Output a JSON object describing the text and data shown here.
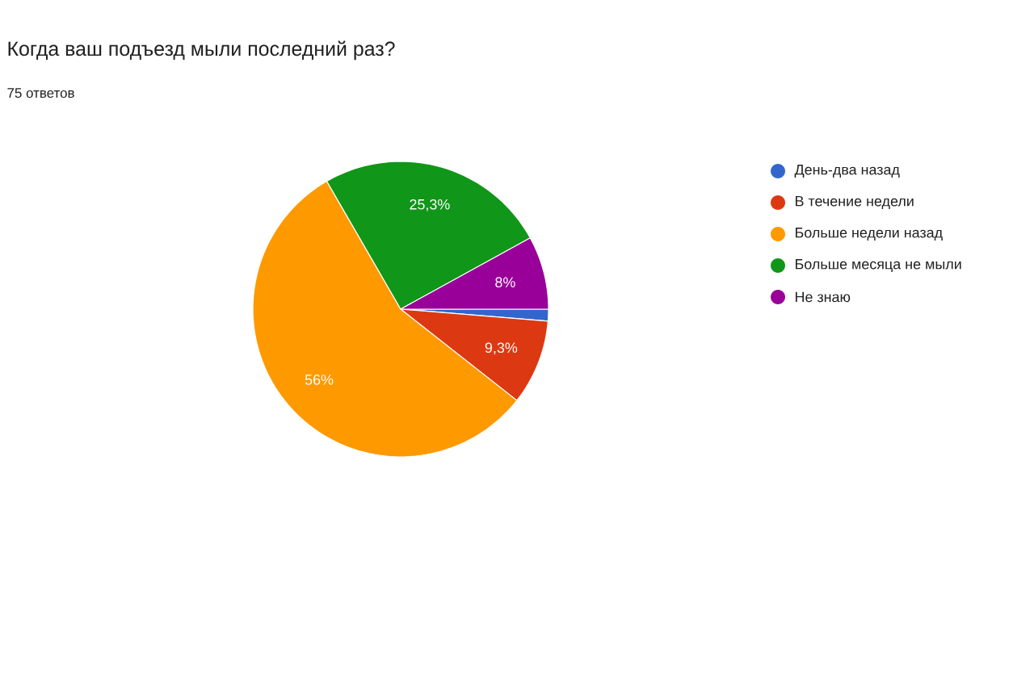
{
  "chart_data": {
    "type": "pie",
    "title": "Когда ваш подъезд мыли последний раз?",
    "subtitle": "75 ответов",
    "categories": [
      "День-два назад",
      "В течение недели",
      "Больше недели назад",
      "Больше месяца не мыли",
      "Не знаю"
    ],
    "values": [
      1.3,
      9.3,
      56,
      25.3,
      8
    ],
    "colors": [
      "#3366cc",
      "#dc3912",
      "#ff9900",
      "#109618",
      "#990099"
    ],
    "value_labels": [
      null,
      "9,3%",
      "56%",
      "25,3%",
      "8%"
    ],
    "legend": "right"
  }
}
